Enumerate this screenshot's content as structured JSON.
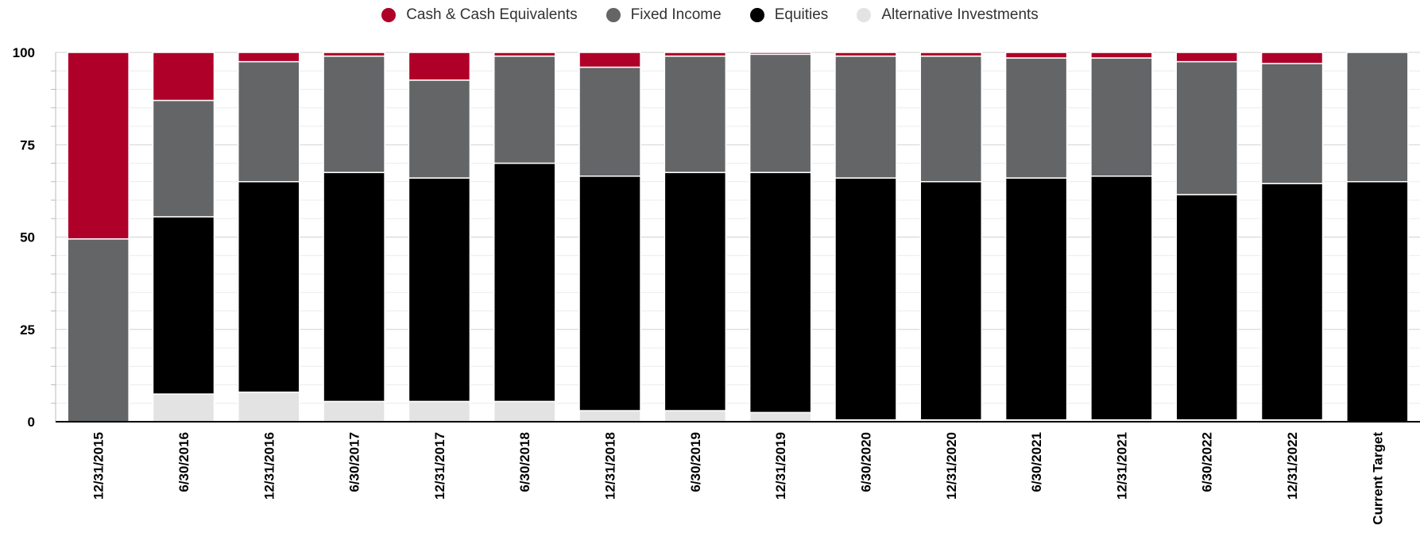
{
  "chart_data": {
    "type": "bar",
    "stacked": true,
    "title": "",
    "xlabel": "",
    "ylabel": "",
    "ylim": [
      0,
      100
    ],
    "yticks": [
      0,
      25,
      50,
      75,
      100
    ],
    "grid": true,
    "legend_position": "top-center",
    "categories": [
      "12/31/2015",
      "6/30/2016",
      "12/31/2016",
      "6/30/2017",
      "12/31/2017",
      "6/30/2018",
      "12/31/2018",
      "6/30/2019",
      "12/31/2019",
      "6/30/2020",
      "12/31/2020",
      "6/30/2021",
      "12/31/2021",
      "6/30/2022",
      "12/31/2022",
      "Current Target"
    ],
    "series": [
      {
        "name": "Alternative Investments",
        "color": "#e3e3e3",
        "values": [
          0,
          7.5,
          8,
          5.5,
          5.5,
          5.5,
          3,
          3,
          2.5,
          0.5,
          0.5,
          0.5,
          0.5,
          0.5,
          0.5,
          0
        ]
      },
      {
        "name": "Equities",
        "color": "#000000",
        "values": [
          0,
          48,
          57,
          62,
          60.5,
          64.5,
          63.5,
          64.5,
          65,
          65.5,
          64.5,
          65.5,
          66,
          61,
          64,
          65
        ]
      },
      {
        "name": "Fixed Income",
        "color": "#646567",
        "values": [
          49.5,
          31.5,
          32.5,
          31.5,
          26.5,
          29,
          29.5,
          31.5,
          32,
          33,
          34,
          32.5,
          32,
          36,
          32.5,
          35
        ]
      },
      {
        "name": "Cash & Cash Equivalents",
        "color": "#ae0029",
        "values": [
          50.5,
          13,
          2.5,
          1,
          7.5,
          1,
          4,
          1,
          0.5,
          1,
          1,
          1.5,
          1.5,
          2.5,
          3,
          0
        ]
      }
    ],
    "legend_order": [
      "Cash & Cash Equivalents",
      "Fixed Income",
      "Equities",
      "Alternative Investments"
    ]
  }
}
